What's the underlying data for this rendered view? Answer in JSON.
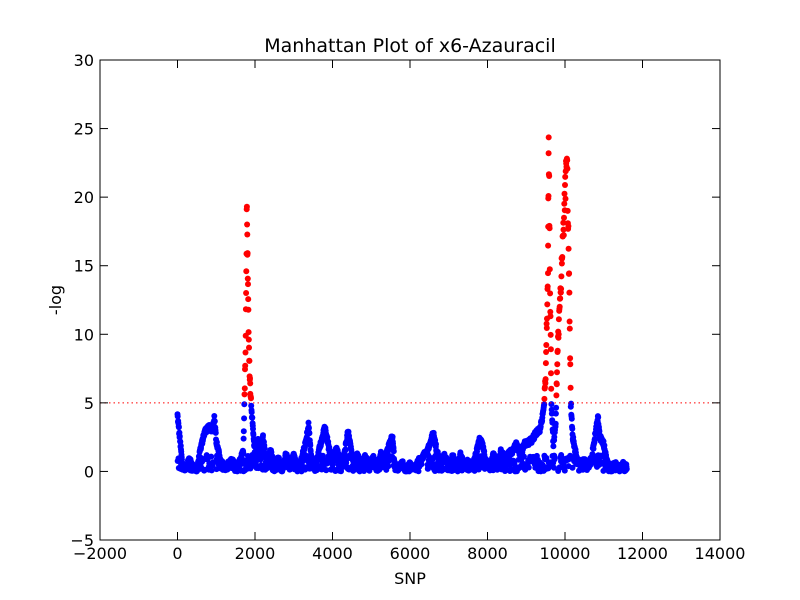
{
  "chart_data": {
    "type": "scatter",
    "title": "Manhattan Plot of x6-Azauracil",
    "xlabel": "SNP",
    "ylabel": "-log",
    "xlim": [
      -2000,
      14000
    ],
    "ylim": [
      -5,
      30
    ],
    "xticks": [
      -2000,
      0,
      2000,
      4000,
      6000,
      8000,
      10000,
      12000,
      14000
    ],
    "yticks": [
      -5,
      0,
      5,
      10,
      15,
      20,
      25,
      30
    ],
    "threshold": 5,
    "threshold_color": "#ff0000",
    "below_color": "#0000ff",
    "above_color": "#ff0000",
    "grid": false,
    "profile": [
      [
        0,
        4.1
      ],
      [
        60,
        2.4
      ],
      [
        120,
        0.6
      ],
      [
        200,
        0.2
      ],
      [
        300,
        0.9
      ],
      [
        400,
        0.3
      ],
      [
        500,
        0.1
      ],
      [
        600,
        1.8
      ],
      [
        700,
        2.8
      ],
      [
        800,
        3.3
      ],
      [
        900,
        3.0
      ],
      [
        950,
        3.9
      ],
      [
        1000,
        2.2
      ],
      [
        1100,
        0.9
      ],
      [
        1200,
        0.3
      ],
      [
        1300,
        0.5
      ],
      [
        1400,
        0.8
      ],
      [
        1500,
        0.4
      ],
      [
        1600,
        0.7
      ],
      [
        1700,
        1.5
      ],
      [
        1760,
        9.5
      ],
      [
        1790,
        19.8
      ],
      [
        1820,
        13.0
      ],
      [
        1850,
        8.0
      ],
      [
        1880,
        6.0
      ],
      [
        1920,
        4.2
      ],
      [
        1960,
        2.5
      ],
      [
        2000,
        1.0
      ],
      [
        2080,
        2.4
      ],
      [
        2140,
        0.8
      ],
      [
        2200,
        2.6
      ],
      [
        2300,
        0.5
      ],
      [
        2400,
        1.5
      ],
      [
        2500,
        0.3
      ],
      [
        2600,
        1.0
      ],
      [
        2700,
        0.2
      ],
      [
        2800,
        1.3
      ],
      [
        2900,
        0.3
      ],
      [
        3000,
        1.2
      ],
      [
        3100,
        0.2
      ],
      [
        3200,
        0.9
      ],
      [
        3300,
        2.0
      ],
      [
        3380,
        3.4
      ],
      [
        3450,
        1.0
      ],
      [
        3550,
        0.3
      ],
      [
        3650,
        1.5
      ],
      [
        3750,
        2.6
      ],
      [
        3800,
        3.3
      ],
      [
        3900,
        1.8
      ],
      [
        4000,
        0.6
      ],
      [
        4100,
        1.8
      ],
      [
        4200,
        0.5
      ],
      [
        4300,
        1.2
      ],
      [
        4400,
        2.9
      ],
      [
        4480,
        1.6
      ],
      [
        4550,
        0.5
      ],
      [
        4650,
        1.2
      ],
      [
        4750,
        0.4
      ],
      [
        4850,
        1.1
      ],
      [
        4950,
        0.3
      ],
      [
        5050,
        1.0
      ],
      [
        5150,
        0.3
      ],
      [
        5250,
        1.3
      ],
      [
        5350,
        0.8
      ],
      [
        5450,
        1.8
      ],
      [
        5500,
        2.3
      ],
      [
        5550,
        2.6
      ],
      [
        5600,
        0.5
      ],
      [
        5700,
        0.2
      ],
      [
        5800,
        0.6
      ],
      [
        5900,
        0.1
      ],
      [
        6000,
        0.5
      ],
      [
        6100,
        0.2
      ],
      [
        6200,
        0.7
      ],
      [
        6300,
        1.0
      ],
      [
        6450,
        1.5
      ],
      [
        6550,
        2.3
      ],
      [
        6600,
        2.8
      ],
      [
        6700,
        1.4
      ],
      [
        6800,
        0.6
      ],
      [
        6900,
        1.2
      ],
      [
        7000,
        0.3
      ],
      [
        7100,
        1.1
      ],
      [
        7200,
        0.4
      ],
      [
        7300,
        1.2
      ],
      [
        7400,
        0.5
      ],
      [
        7500,
        0.7
      ],
      [
        7600,
        0.3
      ],
      [
        7700,
        1.2
      ],
      [
        7800,
        2.4
      ],
      [
        7880,
        1.8
      ],
      [
        7950,
        0.8
      ],
      [
        8050,
        0.3
      ],
      [
        8150,
        1.2
      ],
      [
        8250,
        0.5
      ],
      [
        8350,
        1.6
      ],
      [
        8450,
        0.7
      ],
      [
        8550,
        1.3
      ],
      [
        8650,
        1.5
      ],
      [
        8750,
        2.0
      ],
      [
        8850,
        1.2
      ],
      [
        8950,
        2.0
      ],
      [
        9050,
        2.1
      ],
      [
        9150,
        2.3
      ],
      [
        9250,
        2.8
      ],
      [
        9350,
        3.0
      ],
      [
        9450,
        4.5
      ],
      [
        9500,
        7.0
      ],
      [
        9560,
        15.0
      ],
      [
        9580,
        24.2
      ],
      [
        9620,
        12.0
      ],
      [
        9650,
        5.0
      ],
      [
        9700,
        2.0
      ],
      [
        9760,
        3.5
      ],
      [
        9800,
        8.0
      ],
      [
        9850,
        11.5
      ],
      [
        9900,
        14.0
      ],
      [
        9950,
        17.0
      ],
      [
        10000,
        20.0
      ],
      [
        10050,
        23.2
      ],
      [
        10100,
        15.0
      ],
      [
        10150,
        5.0
      ],
      [
        10200,
        2.5
      ],
      [
        10300,
        1.0
      ],
      [
        10400,
        0.5
      ],
      [
        10500,
        0.8
      ],
      [
        10600,
        0.3
      ],
      [
        10700,
        1.2
      ],
      [
        10800,
        3.0
      ],
      [
        10850,
        4.0
      ],
      [
        10900,
        2.5
      ],
      [
        11000,
        2.0
      ],
      [
        11100,
        0.5
      ],
      [
        11200,
        0.3
      ],
      [
        11300,
        0.6
      ],
      [
        11400,
        0.2
      ],
      [
        11500,
        0.5
      ],
      [
        11600,
        0.3
      ]
    ]
  }
}
